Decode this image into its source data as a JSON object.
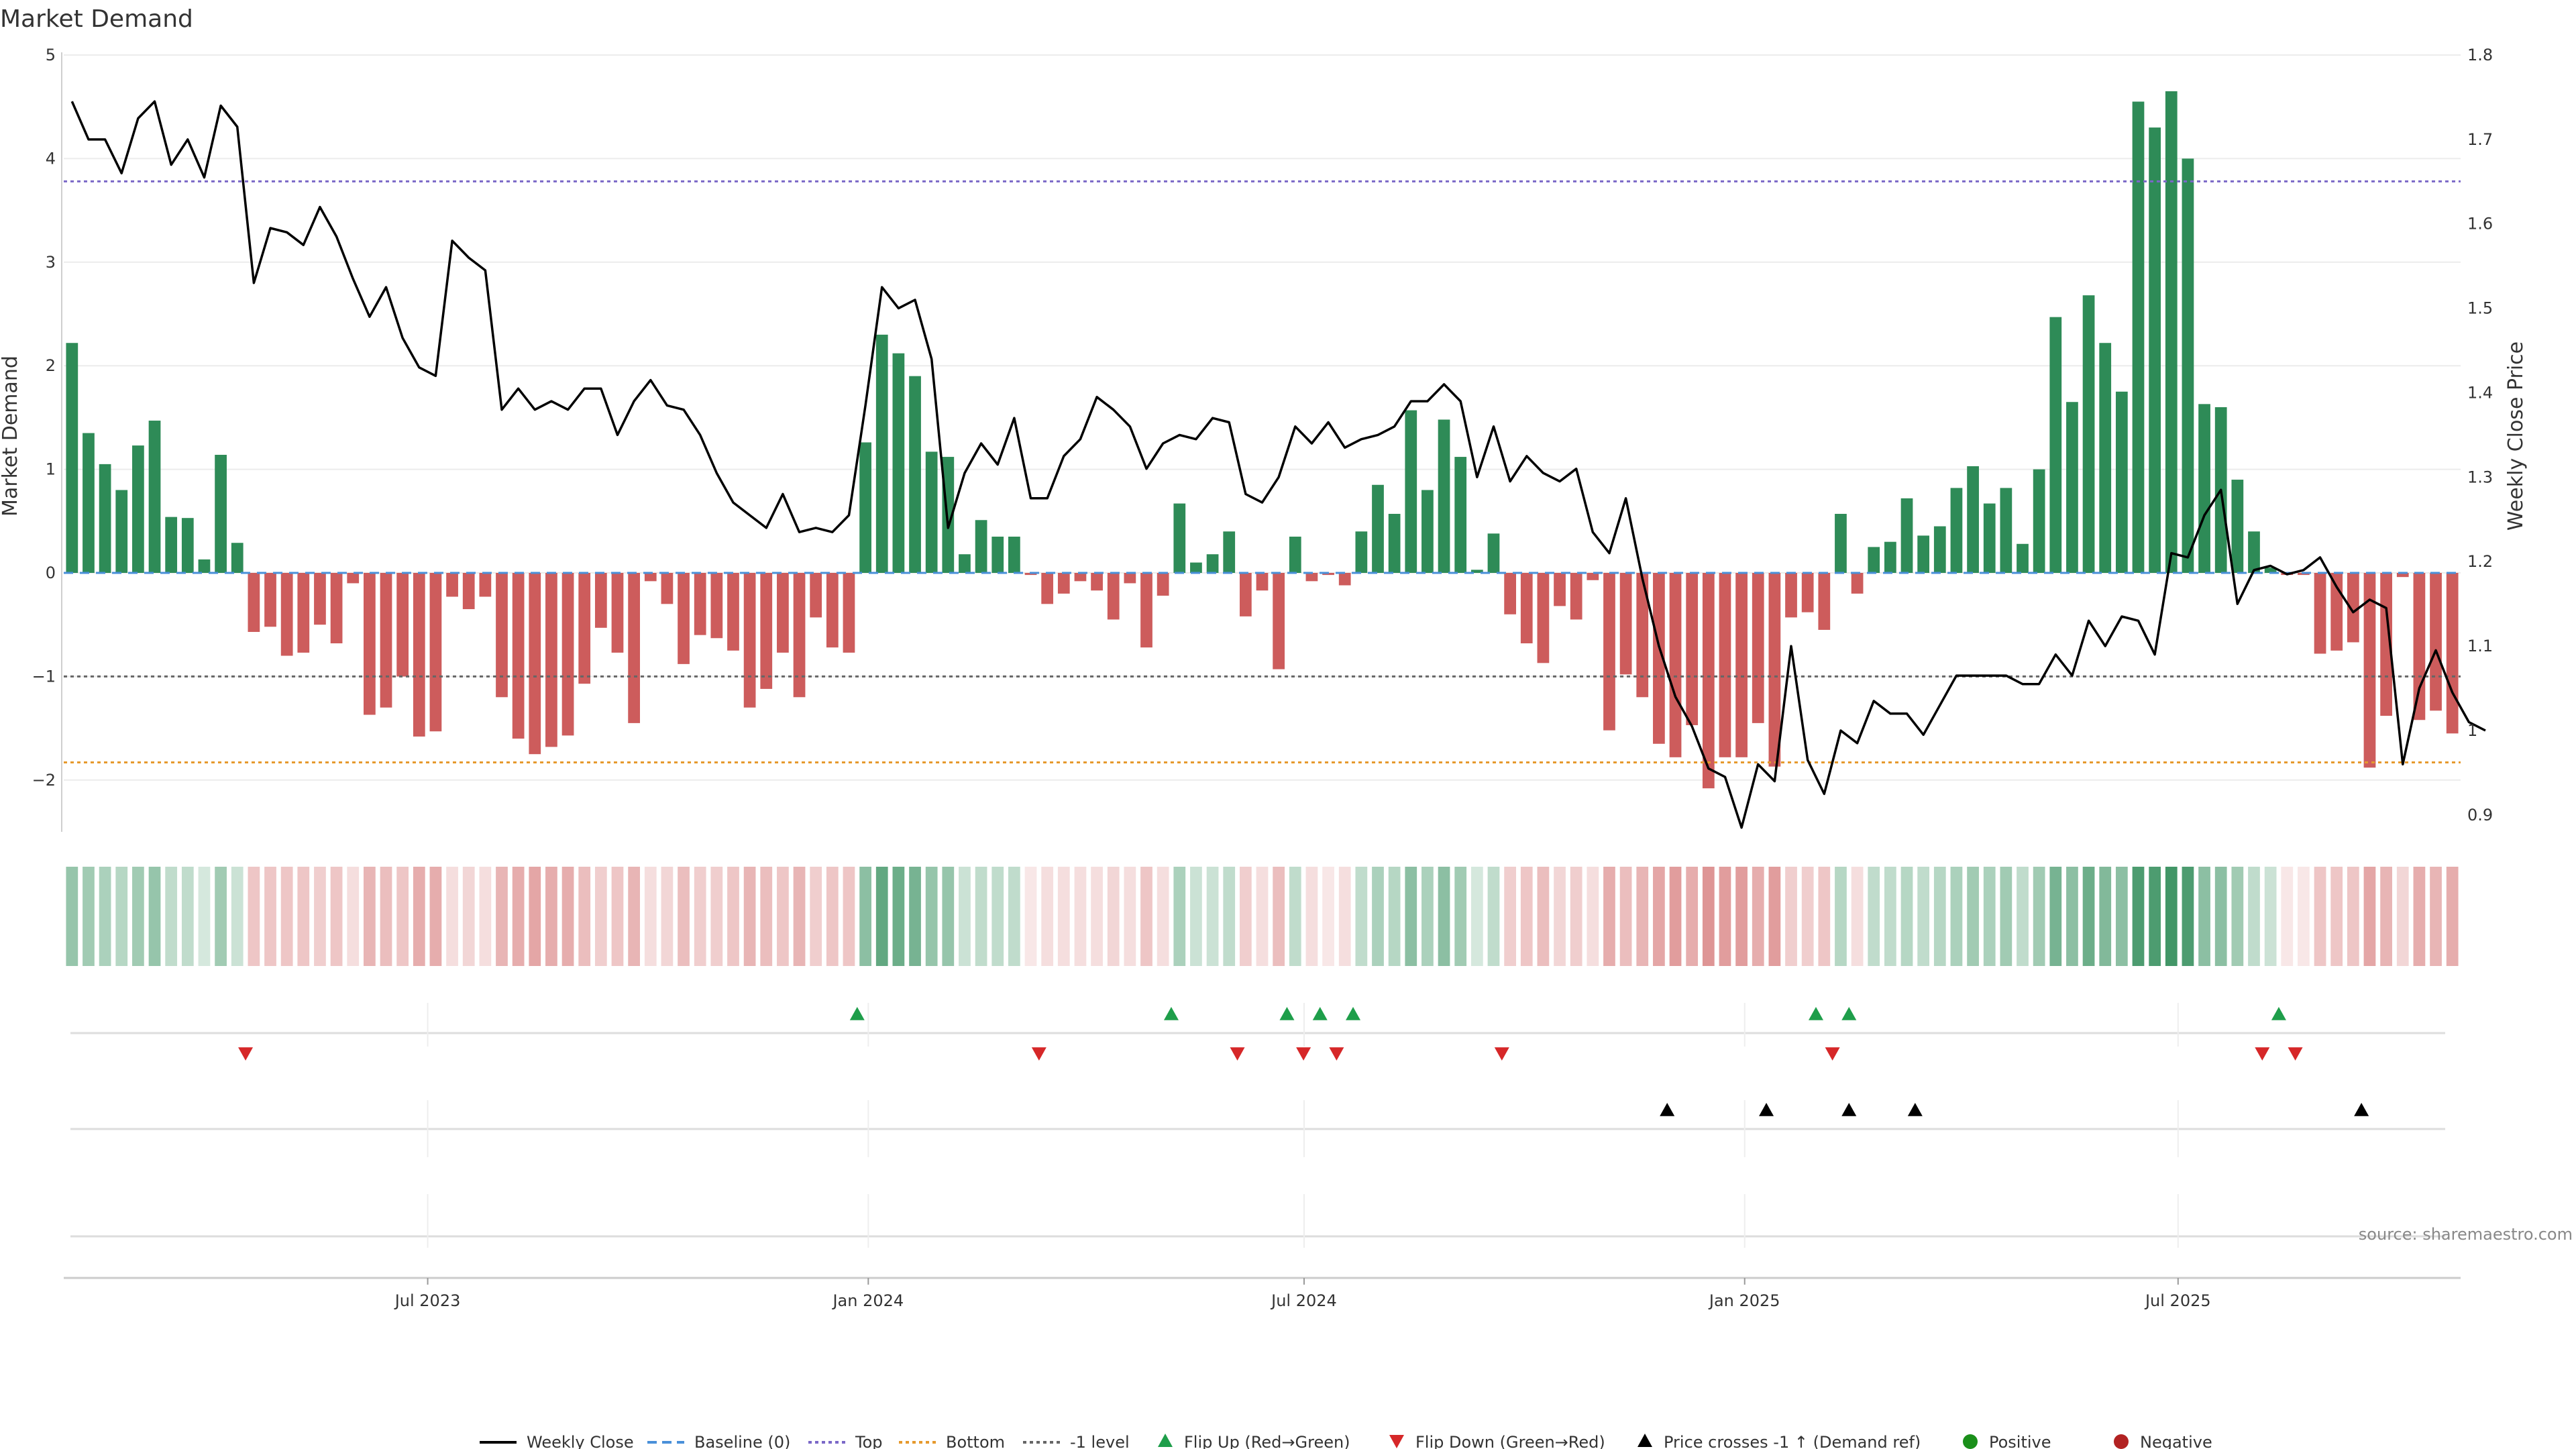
{
  "chart_data": {
    "type": "bar",
    "title": "Market Demand",
    "ylabel_left": "Market Demand",
    "ylabel_right": "Weekly Close Price",
    "source": "source: sharemaestro.com",
    "ylim_left": [
      -2.5,
      5
    ],
    "yticks_left": [
      5,
      4,
      3,
      2,
      1,
      0,
      -1,
      -2
    ],
    "ytick_labels_left": [
      "5",
      "4",
      "3",
      "2",
      "1",
      "0",
      "−1",
      "−2"
    ],
    "ylim_right": [
      0.88,
      1.8
    ],
    "yticks_right": [
      1.8,
      1.7,
      1.6,
      1.5,
      1.4,
      1.3,
      1.2,
      1.1,
      1.0,
      0.9
    ],
    "ytick_labels_right": [
      "1.8",
      "1.7",
      "1.6",
      "1.5",
      "1.4",
      "1.3",
      "1.2",
      "1.1",
      "1",
      "0.9"
    ],
    "x_start": "2023-01-30",
    "x_end": "2025-10-27",
    "x_ticks": [
      {
        "date": "2023-07-01",
        "label": "Jul 2023"
      },
      {
        "date": "2024-01-01",
        "label": "Jan 2024"
      },
      {
        "date": "2024-07-01",
        "label": "Jul 2024"
      },
      {
        "date": "2025-01-01",
        "label": "Jan 2025"
      },
      {
        "date": "2025-07-01",
        "label": "Jul 2025"
      }
    ],
    "reference_lines": {
      "top": 3.78,
      "bottom": -1.83,
      "minus_one": -1,
      "baseline": 0
    },
    "colors": {
      "positive": "#2e8b57",
      "negative": "#cd5c5c",
      "price": "#000000",
      "top": "#7b68c8",
      "bottom": "#e69a2e",
      "minus_one": "#666666",
      "baseline": "#4a90d9",
      "flip_up": "#1e9e4a",
      "flip_down": "#d62728",
      "cross": "#000000",
      "legend_positive": "#1a8f1a",
      "legend_negative": "#b22222"
    },
    "series": [
      {
        "name": "Market Demand",
        "values": [
          2.22,
          1.35,
          1.05,
          0.8,
          1.23,
          1.47,
          0.54,
          0.53,
          0.13,
          1.14,
          0.29,
          -0.57,
          -0.52,
          -0.8,
          -0.77,
          -0.5,
          -0.68,
          -0.1,
          -1.37,
          -1.3,
          -1.0,
          -1.58,
          -1.53,
          -0.23,
          -0.35,
          -0.23,
          -1.2,
          -1.6,
          -1.75,
          -1.68,
          -1.57,
          -1.07,
          -0.53,
          -0.77,
          -1.45,
          -0.08,
          -0.3,
          -0.88,
          -0.6,
          -0.63,
          -0.75,
          -1.3,
          -1.12,
          -0.77,
          -1.2,
          -0.43,
          -0.72,
          -0.77,
          1.26,
          2.3,
          2.12,
          1.9,
          1.17,
          1.12,
          0.18,
          0.51,
          0.35,
          0.35,
          -0.02,
          -0.3,
          -0.2,
          -0.08,
          -0.17,
          -0.45,
          -0.1,
          -0.72,
          -0.22,
          0.67,
          0.1,
          0.18,
          0.4,
          -0.42,
          -0.17,
          -0.93,
          0.35,
          -0.08,
          -0.02,
          -0.12,
          0.4,
          0.85,
          0.57,
          1.57,
          0.8,
          1.48,
          1.12,
          0.03,
          0.38,
          -0.4,
          -0.68,
          -0.87,
          -0.32,
          -0.45,
          -0.07,
          -1.52,
          -0.98,
          -1.2,
          -1.65,
          -1.78,
          -1.47,
          -2.08,
          -1.78,
          -1.78,
          -1.45,
          -1.87,
          -0.43,
          -0.38,
          -0.55,
          0.57,
          -0.2,
          0.25,
          0.3,
          0.72,
          0.36,
          0.45,
          0.82,
          1.03,
          0.67,
          0.82,
          0.28,
          1.0,
          2.47,
          1.65,
          2.68,
          2.22,
          1.75,
          4.55,
          4.3,
          4.65,
          4.0,
          1.63,
          1.6,
          0.9,
          0.4,
          0.05,
          -0.02,
          -0.02,
          -0.78,
          -0.75,
          -0.67,
          -1.88,
          -1.38,
          -0.04,
          -1.42,
          -1.33,
          -1.55
        ]
      },
      {
        "name": "Weekly Close",
        "values": [
          1.745,
          1.7,
          1.7,
          1.66,
          1.725,
          1.745,
          1.67,
          1.7,
          1.655,
          1.74,
          1.715,
          1.53,
          1.595,
          1.59,
          1.575,
          1.62,
          1.585,
          1.535,
          1.49,
          1.525,
          1.465,
          1.43,
          1.42,
          1.58,
          1.56,
          1.545,
          1.38,
          1.405,
          1.38,
          1.39,
          1.38,
          1.405,
          1.405,
          1.35,
          1.39,
          1.415,
          1.385,
          1.38,
          1.35,
          1.305,
          1.27,
          1.255,
          1.24,
          1.28,
          1.235,
          1.24,
          1.235,
          1.255,
          1.385,
          1.525,
          1.5,
          1.51,
          1.44,
          1.24,
          1.305,
          1.34,
          1.315,
          1.37,
          1.275,
          1.275,
          1.325,
          1.345,
          1.395,
          1.38,
          1.36,
          1.31,
          1.34,
          1.35,
          1.345,
          1.37,
          1.365,
          1.28,
          1.27,
          1.3,
          1.36,
          1.34,
          1.365,
          1.335,
          1.345,
          1.35,
          1.36,
          1.39,
          1.39,
          1.41,
          1.39,
          1.3,
          1.36,
          1.295,
          1.325,
          1.305,
          1.295,
          1.31,
          1.235,
          1.21,
          1.275,
          1.18,
          1.1,
          1.04,
          1.005,
          0.955,
          0.945,
          0.885,
          0.96,
          0.94,
          1.1,
          0.965,
          0.925,
          1.0,
          0.985,
          1.035,
          1.02,
          1.02,
          0.995,
          1.03,
          1.065,
          1.065,
          1.065,
          1.065,
          1.055,
          1.055,
          1.09,
          1.065,
          1.13,
          1.1,
          1.135,
          1.13,
          1.09,
          1.21,
          1.205,
          1.255,
          1.285,
          1.15,
          1.19,
          1.195,
          1.185,
          1.19,
          1.205,
          1.17,
          1.14,
          1.155,
          1.145,
          0.96,
          1.05,
          1.095,
          1.045,
          1.01,
          1.0
        ]
      }
    ],
    "heat_strip_opacity": [
      0.5,
      0.45,
      0.4,
      0.35,
      0.45,
      0.5,
      0.3,
      0.3,
      0.2,
      0.45,
      0.25,
      0.35,
      0.35,
      0.35,
      0.35,
      0.3,
      0.35,
      0.2,
      0.45,
      0.4,
      0.35,
      0.5,
      0.5,
      0.2,
      0.25,
      0.2,
      0.45,
      0.5,
      0.55,
      0.5,
      0.5,
      0.4,
      0.3,
      0.35,
      0.45,
      0.2,
      0.25,
      0.4,
      0.3,
      0.3,
      0.35,
      0.45,
      0.4,
      0.35,
      0.45,
      0.3,
      0.35,
      0.35,
      0.55,
      0.75,
      0.7,
      0.65,
      0.5,
      0.5,
      0.25,
      0.3,
      0.3,
      0.3,
      0.15,
      0.2,
      0.2,
      0.2,
      0.2,
      0.25,
      0.2,
      0.35,
      0.2,
      0.4,
      0.25,
      0.25,
      0.3,
      0.3,
      0.2,
      0.4,
      0.3,
      0.2,
      0.15,
      0.2,
      0.3,
      0.4,
      0.35,
      0.55,
      0.4,
      0.55,
      0.45,
      0.2,
      0.3,
      0.3,
      0.35,
      0.4,
      0.25,
      0.3,
      0.2,
      0.5,
      0.4,
      0.45,
      0.55,
      0.6,
      0.5,
      0.65,
      0.6,
      0.6,
      0.5,
      0.6,
      0.3,
      0.3,
      0.35,
      0.35,
      0.2,
      0.3,
      0.3,
      0.35,
      0.3,
      0.35,
      0.4,
      0.45,
      0.4,
      0.45,
      0.3,
      0.45,
      0.65,
      0.55,
      0.7,
      0.6,
      0.55,
      0.85,
      0.85,
      0.9,
      0.85,
      0.55,
      0.55,
      0.45,
      0.3,
      0.25,
      0.15,
      0.15,
      0.35,
      0.35,
      0.35,
      0.55,
      0.45,
      0.25,
      0.5,
      0.45,
      0.5
    ],
    "flip_up_indices": [
      48,
      67,
      74,
      76,
      78,
      106,
      108,
      134
    ],
    "flip_down_indices": [
      11,
      59,
      71,
      75,
      77,
      87,
      107,
      133,
      135
    ],
    "cross_indices": [
      97,
      103,
      108,
      112,
      139
    ],
    "legend": [
      {
        "label": "Weekly Close",
        "symbol": "line-solid"
      },
      {
        "label": "Baseline (0)",
        "symbol": "line-dash-blue"
      },
      {
        "label": "Top",
        "symbol": "line-dot-purple"
      },
      {
        "label": "Bottom",
        "symbol": "line-dot-orange"
      },
      {
        "label": "-1 level",
        "symbol": "line-dot-gray"
      },
      {
        "label": "Flip Up (Red→Green)",
        "symbol": "triangle-up-green"
      },
      {
        "label": "Flip Down (Green→Red)",
        "symbol": "triangle-down-red"
      },
      {
        "label": "Price crosses -1 ↑ (Demand ref)",
        "symbol": "triangle-up-black"
      },
      {
        "label": "Positive",
        "symbol": "circle-green"
      },
      {
        "label": "Negative",
        "symbol": "circle-red"
      }
    ]
  }
}
